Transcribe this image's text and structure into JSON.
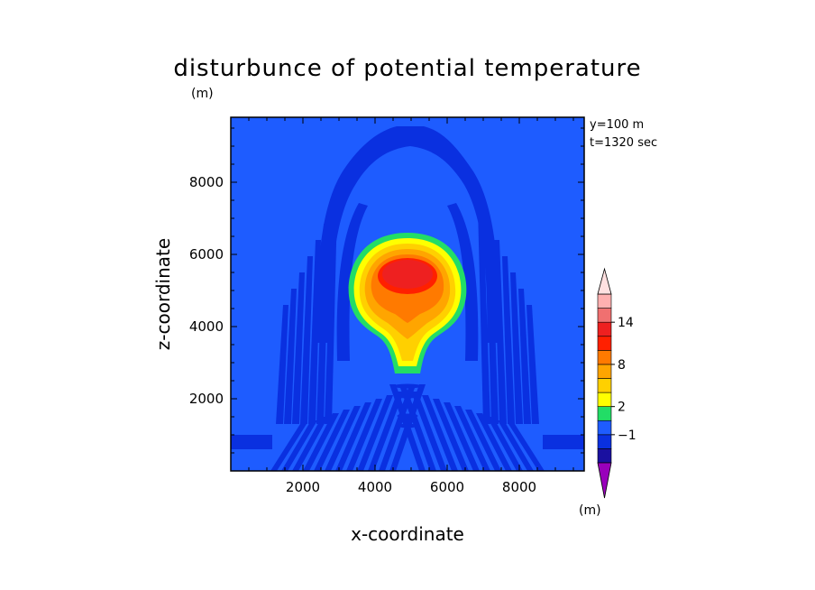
{
  "chart_data": {
    "type": "heatmap",
    "title": "disturbunce of potential temperature",
    "title_unit": "(m)",
    "xlabel": "x-coordinate",
    "ylabel": "z-coordinate",
    "xlim": [
      0,
      9800
    ],
    "ylim": [
      0,
      9800
    ],
    "xticks": [
      2000,
      4000,
      6000,
      8000
    ],
    "yticks": [
      2000,
      4000,
      6000,
      8000
    ],
    "xtick_labels": [
      "2000",
      "4000",
      "6000",
      "8000"
    ],
    "ytick_labels": [
      "2000",
      "4000",
      "6000",
      "8000"
    ],
    "annotations": [
      "y=100 m",
      "t=1320 sec"
    ],
    "colorbar": {
      "levels": [
        -3,
        -2,
        -1,
        0,
        2,
        4,
        6,
        8,
        10,
        12,
        14,
        16
      ],
      "labeled_levels": [
        -1,
        2,
        8,
        14
      ],
      "tick_labels": [
        "−1",
        "2",
        "8",
        "14"
      ],
      "unit": "(m)",
      "colors": [
        "#9900bb",
        "#1a10a0",
        "#0a30e0",
        "#1e5cff",
        "#22dd66",
        "#ffff00",
        "#ffd000",
        "#ffa500",
        "#ff7a00",
        "#ff2000",
        "#ee2020",
        "#f07070",
        "#ffb0b0",
        "#ffe0e0"
      ]
    },
    "background_value": "-1 to 0",
    "features": [
      {
        "name": "warm bubble",
        "center_x": 5000,
        "center_z": 5600,
        "max_value": 12
      },
      {
        "name": "bubble stem",
        "center_x": 5000,
        "z_range": [
          2800,
          4000
        ]
      },
      {
        "name": "cold arch",
        "x_range": [
          2400,
          7600
        ],
        "top_z": 9500,
        "value_range": "-2 to -1"
      },
      {
        "name": "gravity-wave band",
        "z_range": [
          0,
          2000
        ],
        "value_range": "-2 to -1"
      }
    ]
  }
}
